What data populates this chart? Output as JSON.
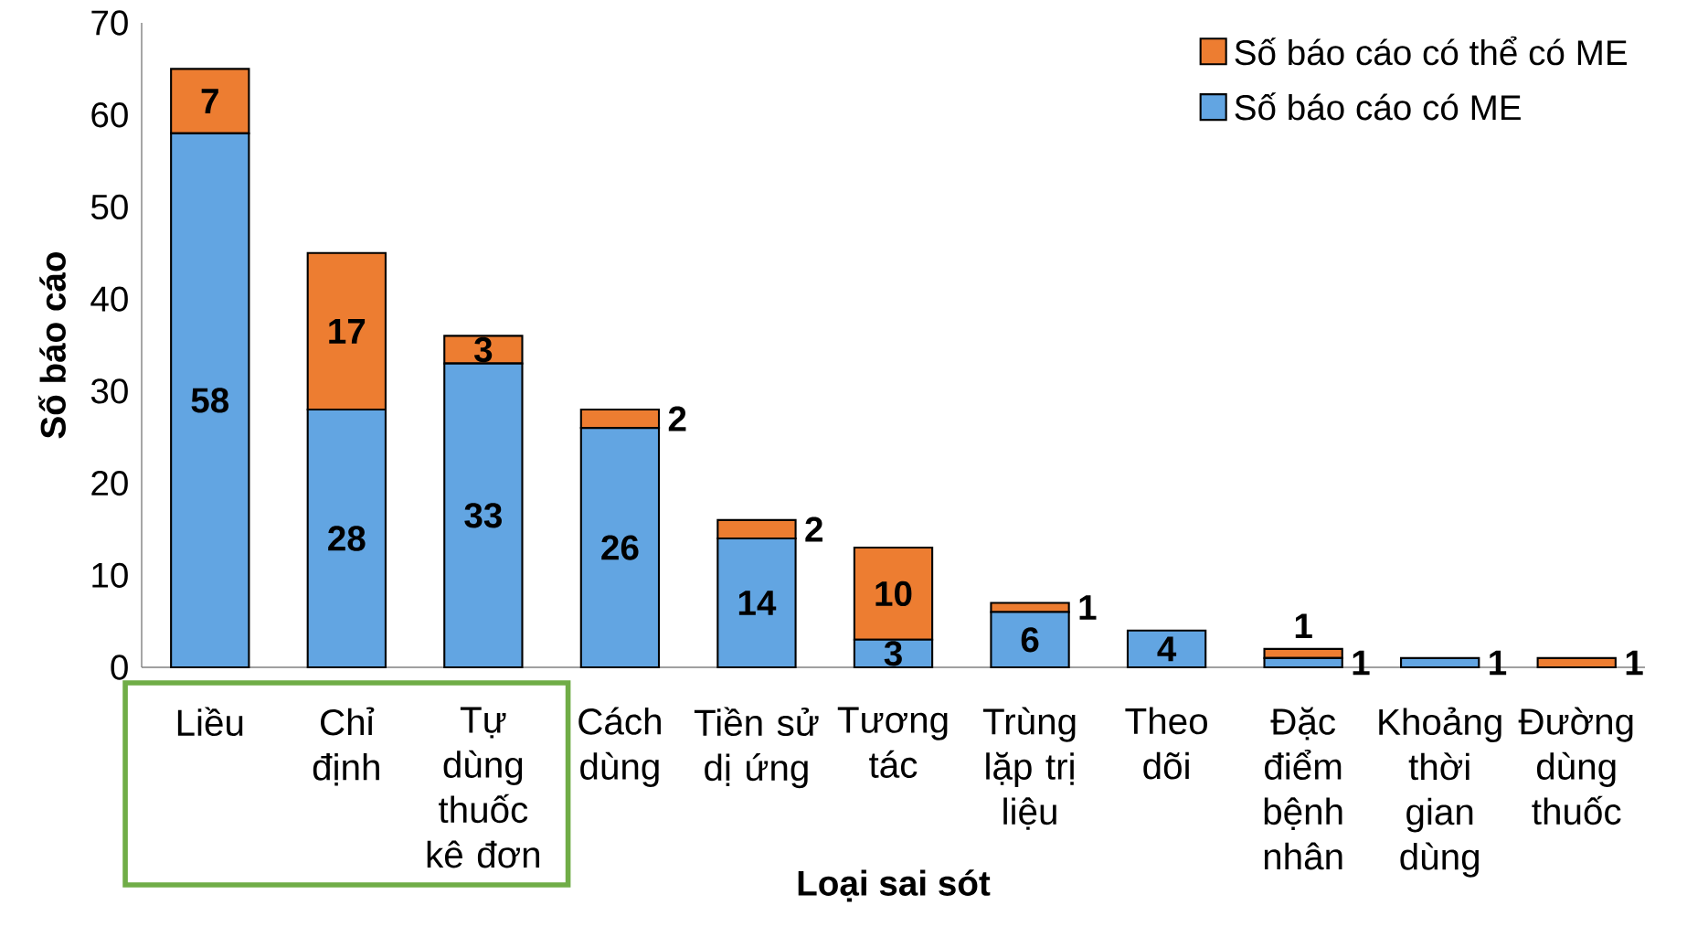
{
  "chart_data": {
    "type": "bar",
    "stacked": true,
    "xlabel": "Loại sai sót",
    "ylabel": "Số báo cáo",
    "categories": [
      "Liều",
      "Chỉ định",
      "Tự dùng thuốc kê đơn",
      "Cách dùng",
      "Tiền sử dị ứng",
      "Tương tác",
      "Trùng lặp trị liệu",
      "Theo dõi",
      "Đặc điểm bệnh nhân",
      "Khoảng thời gian dùng",
      "Đường dùng thuốc"
    ],
    "series": [
      {
        "name": "Số báo cáo có ME",
        "color": "#62a5e2",
        "values": [
          58,
          28,
          33,
          26,
          14,
          3,
          6,
          4,
          1,
          1,
          null
        ]
      },
      {
        "name": "Số báo cáo có thể có ME",
        "color": "#ed7d31",
        "values": [
          7,
          17,
          3,
          2,
          2,
          10,
          1,
          null,
          1,
          null,
          1
        ]
      }
    ],
    "ylim": [
      0,
      70
    ],
    "yticks": [
      0,
      10,
      20,
      30,
      40,
      50,
      60,
      70
    ],
    "data_labels": true,
    "legend": "top right",
    "grid": false
  }
}
